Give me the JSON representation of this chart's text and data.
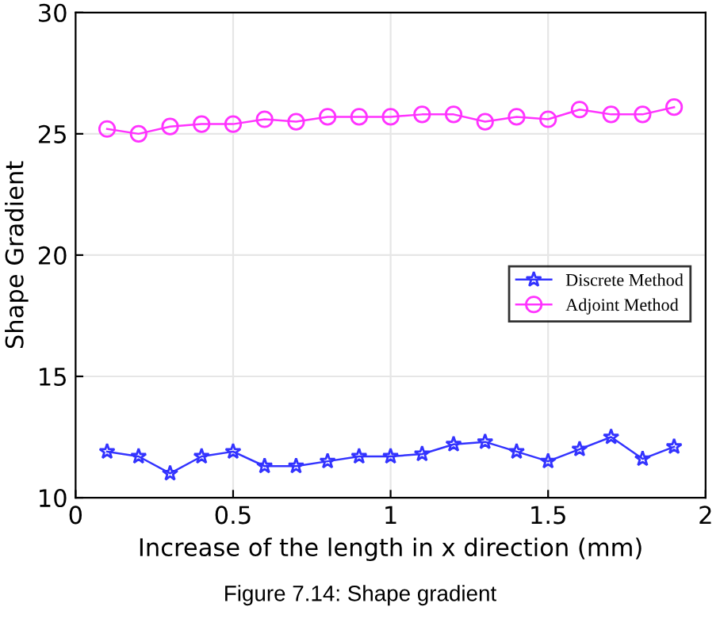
{
  "chart_data": {
    "type": "line",
    "xlabel": "Increase of the length in x direction (mm)",
    "ylabel": "Shape Gradient",
    "x": [
      0.1,
      0.2,
      0.3,
      0.4,
      0.5,
      0.6,
      0.7,
      0.8,
      0.9,
      1.0,
      1.1,
      1.2,
      1.3,
      1.4,
      1.5,
      1.6,
      1.7,
      1.8,
      1.9
    ],
    "series": [
      {
        "name": "Discrete Method",
        "color": "#3333ff",
        "marker": "star",
        "values": [
          11.9,
          11.7,
          11.0,
          11.7,
          11.9,
          11.3,
          11.3,
          11.5,
          11.7,
          11.7,
          11.8,
          12.2,
          12.3,
          11.9,
          11.5,
          12.0,
          12.5,
          11.6,
          12.1
        ]
      },
      {
        "name": "Adjoint Method",
        "color": "#ff33ff",
        "marker": "circle",
        "values": [
          25.2,
          25.0,
          25.3,
          25.4,
          25.4,
          25.6,
          25.5,
          25.7,
          25.7,
          25.7,
          25.8,
          25.8,
          25.5,
          25.7,
          25.6,
          26.0,
          25.8,
          25.8,
          26.1
        ]
      }
    ],
    "xlim": [
      0,
      2
    ],
    "xticks": [
      0,
      0.5,
      1,
      1.5,
      2
    ],
    "ylim": [
      10,
      30
    ],
    "yticks": [
      10,
      15,
      20,
      25,
      30
    ],
    "grid": true,
    "legend": "right",
    "annotations": [
      "Figure 7.14: Shape gradient"
    ]
  }
}
